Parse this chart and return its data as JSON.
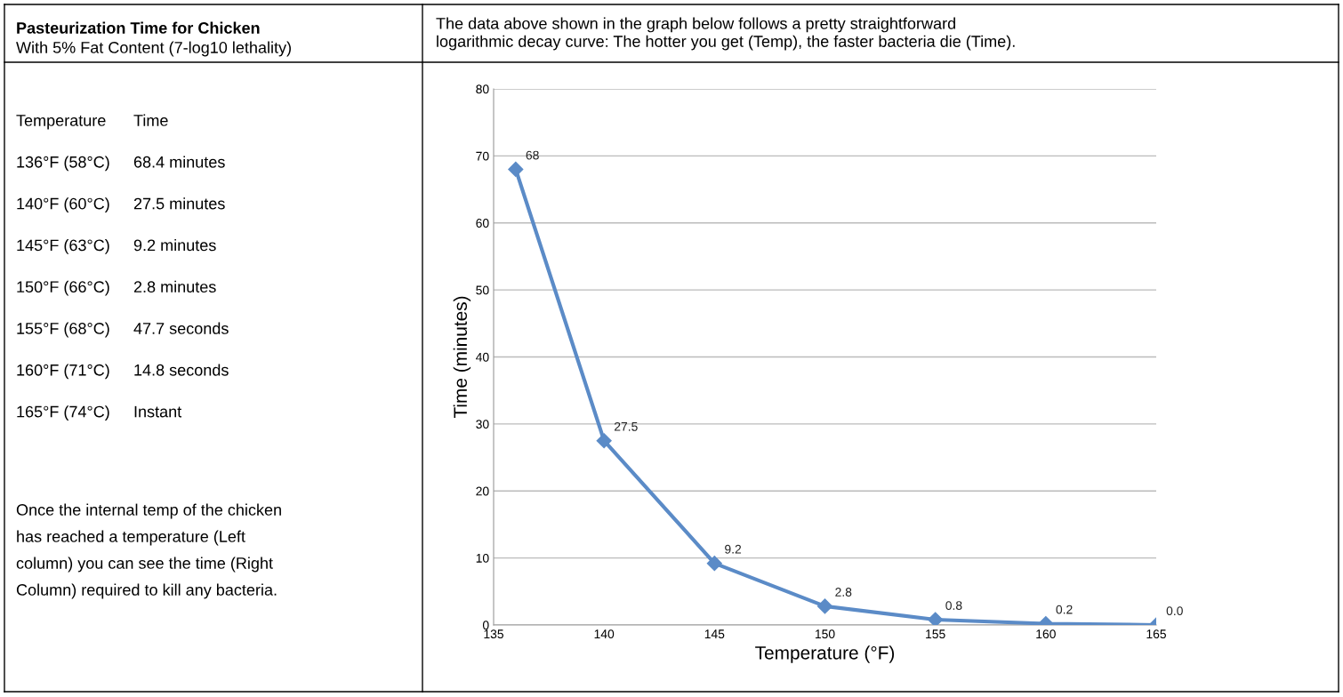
{
  "chart_data": [
    {
      "type": "other",
      "title": "Pasteurization Time for Chicken",
      "subtitle": "With 5% Fat Content (7-log10 lethality)",
      "annotations": [
        "Temperature",
        "Time",
        "136°F (58°C)",
        "68.4 minutes",
        "140°F (60°C)",
        "27.5 minutes",
        "145°F (63°C)",
        "9.2 minutes",
        "150°F (66°C)",
        "2.8 minutes",
        "155°F (68°C)",
        "47.7 seconds",
        "160°F (71°C)",
        "14.8 seconds",
        "165°F (74°C)",
        "Instant",
        "Once the internal temp of the chicken",
        "has reached a temperature (Left",
        "column) you can see the time (Right",
        "Column) required to kill any bacteria."
      ]
    },
    {
      "type": "line",
      "title": "The data above shown in the graph below follows a pretty straightforward\nlogarithmic decay curve: The hotter you get (Temp), the faster bacteria die (Time).",
      "xlabel": "Temperature (°F)",
      "ylabel": "Time (minutes)",
      "x": [
        136,
        140,
        145,
        150,
        155,
        160,
        165
      ],
      "series": [
        {
          "color": "#5b8bc7",
          "values": [
            68,
            27.5,
            9.2,
            2.8,
            0.8,
            0.2,
            0.0
          ]
        }
      ],
      "xlim": [
        135,
        165
      ],
      "xticks": [
        135,
        140,
        145,
        150,
        155,
        160,
        165
      ],
      "ylim": [
        0,
        80
      ],
      "yticks": [
        0,
        10,
        20,
        30,
        40,
        50,
        60,
        70,
        80
      ],
      "value_labels": [
        "68",
        "27.5",
        "9.2",
        "2.8",
        "0.8",
        "0.2",
        "0.0"
      ],
      "grid": "y",
      "marker": "diamond",
      "line_style": "solid",
      "legend": false
    }
  ]
}
